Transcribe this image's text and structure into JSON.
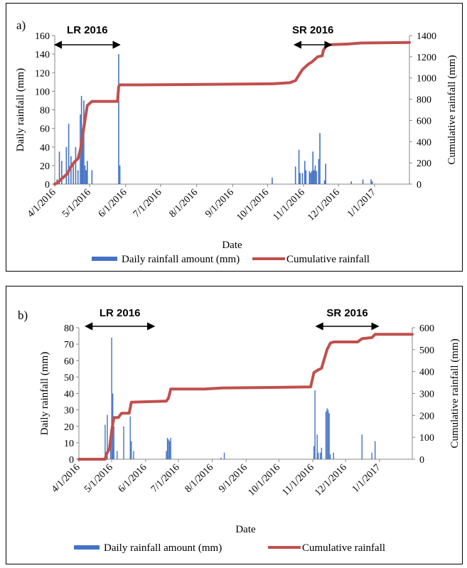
{
  "chart_data": [
    {
      "type": "bar",
      "panel_label": "a)",
      "xlabel": "Date",
      "ylabel": "Daily rainfall (mm)",
      "y2label": "Cumulative rainfall (mm)",
      "ylim": [
        0,
        160
      ],
      "y2lim": [
        0,
        1400
      ],
      "yticks": [
        0,
        20,
        40,
        60,
        80,
        100,
        120,
        140,
        160
      ],
      "y2ticks": [
        0,
        200,
        400,
        600,
        800,
        1000,
        1200,
        1400
      ],
      "xlim": [
        "2016-04-01",
        "2017-01-31"
      ],
      "xticks": [
        "4/1/2016",
        "5/1/2016",
        "6/1/2016",
        "7/1/2016",
        "8/1/2016",
        "9/1/2016",
        "10/1/2016",
        "11/1/2016",
        "12/1/2016",
        "1/1/2017"
      ],
      "grid": false,
      "legend_position": "bottom",
      "legend": [
        "Daily rainfall amount (mm)",
        "Cumulative rainfall"
      ],
      "periods": [
        {
          "label": "LR 2016",
          "start": "2016-04-01",
          "end": "2016-05-27"
        },
        {
          "label": "SR 2016",
          "start": "2016-10-24",
          "end": "2016-11-25"
        }
      ],
      "colors": {
        "bars": "#4472c4",
        "line": "#c0504d"
      },
      "series": [
        {
          "name": "Daily rainfall amount (mm)",
          "kind": "bar",
          "x": [
            "2016-04-03",
            "2016-04-05",
            "2016-04-07",
            "2016-04-11",
            "2016-04-13",
            "2016-04-15",
            "2016-04-17",
            "2016-04-19",
            "2016-04-21",
            "2016-04-23",
            "2016-04-24",
            "2016-04-25",
            "2016-04-26",
            "2016-04-27",
            "2016-04-28",
            "2016-04-29",
            "2016-05-03",
            "2016-05-26",
            "2016-05-27",
            "2016-10-05",
            "2016-10-25",
            "2016-10-28",
            "2016-10-29",
            "2016-10-31",
            "2016-11-02",
            "2016-11-03",
            "2016-11-06",
            "2016-11-07",
            "2016-11-08",
            "2016-11-09",
            "2016-11-10",
            "2016-11-11",
            "2016-11-12",
            "2016-11-14",
            "2016-11-15",
            "2016-11-19",
            "2016-11-20",
            "2016-12-12",
            "2016-12-22",
            "2016-12-29",
            "2016-12-30"
          ],
          "values": [
            5,
            35,
            25,
            40,
            65,
            30,
            22,
            40,
            15,
            75,
            95,
            60,
            90,
            20,
            15,
            25,
            15,
            140,
            20,
            7,
            19,
            37,
            12,
            12,
            25,
            15,
            14,
            12,
            14,
            35,
            15,
            20,
            14,
            27,
            55,
            4,
            22,
            3,
            5,
            5,
            3
          ]
        },
        {
          "name": "Cumulative rainfall",
          "kind": "line",
          "axis": "right",
          "x": [
            "2016-04-01",
            "2016-04-03",
            "2016-04-08",
            "2016-04-12",
            "2016-04-14",
            "2016-04-18",
            "2016-04-21",
            "2016-04-23",
            "2016-04-25",
            "2016-04-27",
            "2016-04-29",
            "2016-05-01",
            "2016-05-03",
            "2016-05-10",
            "2016-05-25",
            "2016-05-26",
            "2016-05-27",
            "2016-06-15",
            "2016-10-05",
            "2016-10-20",
            "2016-10-25",
            "2016-10-27",
            "2016-10-31",
            "2016-11-05",
            "2016-11-08",
            "2016-11-13",
            "2016-11-17",
            "2016-11-18",
            "2016-11-21",
            "2016-11-25",
            "2016-12-10",
            "2016-12-20",
            "2017-01-31"
          ],
          "values": [
            0,
            10,
            60,
            100,
            150,
            210,
            240,
            320,
            460,
            600,
            740,
            760,
            780,
            780,
            780,
            920,
            935,
            935,
            945,
            955,
            975,
            1010,
            1080,
            1130,
            1150,
            1200,
            1210,
            1260,
            1310,
            1315,
            1320,
            1330,
            1335
          ]
        }
      ]
    },
    {
      "type": "bar",
      "panel_label": "b)",
      "xlabel": "Date",
      "ylabel": "Daily rainfall (mm)",
      "y2label": "Cumulative rainfall (mm)",
      "ylim": [
        0,
        80
      ],
      "y2lim": [
        0,
        600
      ],
      "yticks": [
        0,
        10,
        20,
        30,
        40,
        50,
        60,
        70,
        80
      ],
      "y2ticks": [
        0,
        100,
        200,
        300,
        400,
        500,
        600
      ],
      "xlim": [
        "2016-04-01",
        "2017-01-31"
      ],
      "xticks": [
        "4/1/2016",
        "5/1/2016",
        "6/1/2016",
        "7/1/2016",
        "8/1/2016",
        "9/1/2016",
        "10/1/2016",
        "11/1/2016",
        "12/1/2016",
        "1/1/2017"
      ],
      "grid": false,
      "legend_position": "bottom",
      "legend": [
        "Daily rainfall amount (mm)",
        "Cumulative rainfall"
      ],
      "periods": [
        {
          "label": "LR 2016",
          "start": "2016-04-07",
          "end": "2016-06-09"
        },
        {
          "label": "SR 2016",
          "start": "2016-11-04",
          "end": "2016-12-31"
        }
      ],
      "colors": {
        "bars": "#4472c4",
        "line": "#c0504d"
      },
      "series": [
        {
          "name": "Daily rainfall amount (mm)",
          "kind": "bar",
          "x": [
            "2016-04-25",
            "2016-04-27",
            "2016-04-30",
            "2016-05-01",
            "2016-05-02",
            "2016-05-03",
            "2016-05-06",
            "2016-05-12",
            "2016-05-18",
            "2016-05-19",
            "2016-05-21",
            "2016-06-20",
            "2016-06-21",
            "2016-06-22",
            "2016-06-23",
            "2016-06-24",
            "2016-08-09",
            "2016-08-12",
            "2016-11-02",
            "2016-11-03",
            "2016-11-05",
            "2016-11-06",
            "2016-11-08",
            "2016-11-09",
            "2016-11-13",
            "2016-11-14",
            "2016-11-15",
            "2016-11-16",
            "2016-11-17",
            "2016-11-20",
            "2016-12-16",
            "2016-12-25",
            "2016-12-28"
          ],
          "values": [
            21,
            27,
            10,
            74,
            40,
            20,
            5,
            20,
            26,
            11,
            5,
            5,
            13,
            12,
            11,
            13,
            1,
            4,
            8,
            42,
            15,
            4,
            4,
            7,
            29,
            31,
            30,
            28,
            3,
            4,
            15,
            4,
            11
          ]
        },
        {
          "name": "Cumulative rainfall",
          "kind": "line",
          "axis": "right",
          "x": [
            "2016-04-01",
            "2016-04-25",
            "2016-04-26",
            "2016-04-29",
            "2016-05-01",
            "2016-05-03",
            "2016-05-07",
            "2016-05-10",
            "2016-05-17",
            "2016-05-19",
            "2016-06-20",
            "2016-06-22",
            "2016-06-24",
            "2016-07-25",
            "2016-08-10",
            "2016-10-30",
            "2016-11-02",
            "2016-11-05",
            "2016-11-09",
            "2016-11-14",
            "2016-11-17",
            "2016-11-20",
            "2016-12-12",
            "2016-12-16",
            "2016-12-25",
            "2016-12-28",
            "2017-01-31"
          ],
          "values": [
            0,
            0,
            20,
            50,
            130,
            190,
            190,
            210,
            210,
            260,
            265,
            280,
            320,
            320,
            325,
            330,
            395,
            405,
            415,
            500,
            530,
            535,
            535,
            550,
            555,
            570,
            570
          ]
        }
      ]
    }
  ]
}
